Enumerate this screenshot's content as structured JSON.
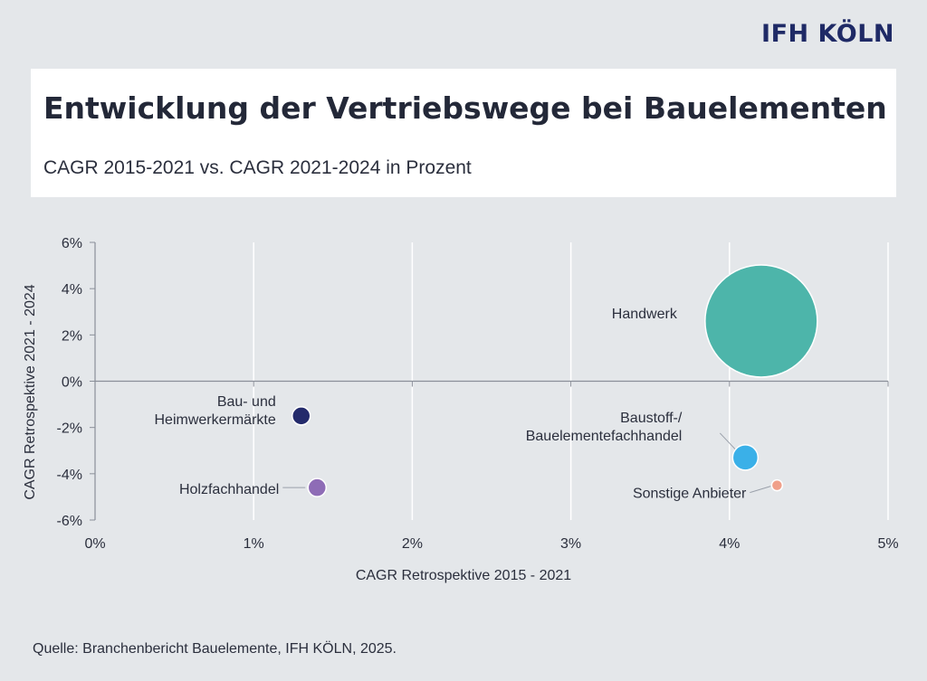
{
  "logo": "IFH KÖLN",
  "title": "Entwicklung der Vertriebswege bei Bauelementen",
  "subtitle": "CAGR 2015-2021 vs. CAGR 2021-2024 in Prozent",
  "source": "Quelle: Branchenbericht Bauelemente, IFH KÖLN, 2025.",
  "chart_data": {
    "type": "scatter",
    "xlabel": "CAGR Retrospektive 2015 - 2021",
    "ylabel": "CAGR Retrospektive 2021 - 2024",
    "xlim": [
      0,
      5
    ],
    "ylim": [
      -6,
      6
    ],
    "x_ticks": [
      0,
      1,
      2,
      3,
      4,
      5
    ],
    "x_tick_labels": [
      "0%",
      "1%",
      "2%",
      "3%",
      "4%",
      "5%"
    ],
    "y_ticks": [
      6,
      4,
      2,
      0,
      -2,
      -4,
      -6
    ],
    "y_tick_labels": [
      "6%",
      "4%",
      "2%",
      "0%",
      "-2%",
      "-4%",
      "-6%"
    ],
    "grid": "vertical",
    "points": [
      {
        "label": "Handwerk",
        "x": 4.2,
        "y": 2.6,
        "size": "very large",
        "color": "#4db5aa"
      },
      {
        "label": "Bau- und\nHeimwerkermärkte",
        "x": 1.3,
        "y": -1.5,
        "size": "small",
        "color": "#232a6b"
      },
      {
        "label": "Holzfachhandel",
        "x": 1.4,
        "y": -4.6,
        "size": "small",
        "color": "#8e6cb6"
      },
      {
        "label": "Baustoff-/\nBauelementefachhandel",
        "x": 4.1,
        "y": -3.3,
        "size": "medium",
        "color": "#3ab0e8"
      },
      {
        "label": "Sonstige Anbieter",
        "x": 4.3,
        "y": -4.5,
        "size": "tiny",
        "color": "#f0a08a"
      }
    ]
  }
}
